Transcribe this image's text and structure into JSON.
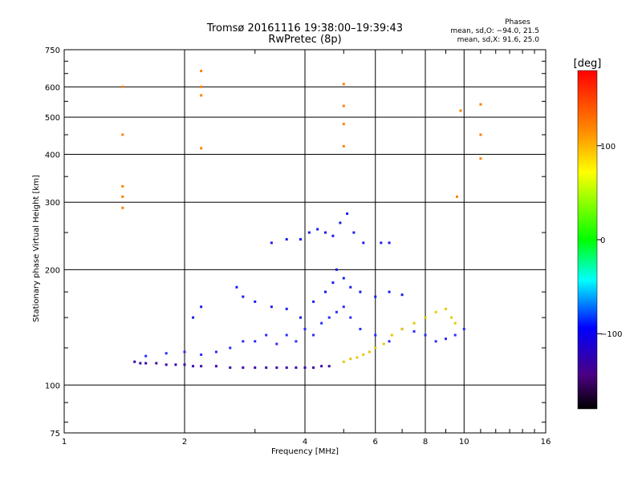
{
  "title": "Tromsø 20161116 19:38:00–19:39:43",
  "subtitle": "RwPretec (8p)",
  "phase_box": {
    "heading": "Phases",
    "line1": "mean, sd,O: −94.0, 21.5",
    "line2": "mean, sd,X:  91.6, 25.0"
  },
  "colorbar": {
    "label": "[deg]",
    "ticks": [
      "100",
      "0",
      "−100"
    ],
    "tick_values": [
      100,
      0,
      -100
    ],
    "range": [
      -180,
      180
    ]
  },
  "chart_data": {
    "type": "scatter",
    "title": "Tromsø 20161116 19:38:00–19:39:43",
    "subtitle": "RwPretec (8p)",
    "xlabel": "Frequency [MHz]",
    "ylabel": "Stationary phase Virtual Height [km]",
    "xscale": "log",
    "yscale": "log",
    "xlim": [
      1,
      16
    ],
    "ylim": [
      75,
      750
    ],
    "x_ticks": [
      1,
      2,
      4,
      6,
      8,
      10,
      16
    ],
    "x_tick_labels": [
      "1",
      "2",
      "4",
      "6",
      "8",
      "10",
      "16"
    ],
    "y_ticks": [
      75,
      100,
      200,
      300,
      400,
      500,
      600,
      750
    ],
    "y_tick_labels": [
      "75",
      "100",
      "200",
      "300",
      "400",
      "500",
      "600",
      "750"
    ],
    "grid": true,
    "color_by": "phase (deg)",
    "series": [
      {
        "name": "O-trace lower (purple, ~-130 deg)",
        "points": [
          [
            1.5,
            115
          ],
          [
            1.55,
            114
          ],
          [
            1.6,
            114
          ],
          [
            1.7,
            114
          ],
          [
            1.8,
            113
          ],
          [
            1.9,
            113
          ],
          [
            2.0,
            113
          ],
          [
            2.1,
            112
          ],
          [
            2.2,
            112
          ],
          [
            2.4,
            112
          ],
          [
            2.6,
            111
          ],
          [
            2.8,
            111
          ],
          [
            3.0,
            111
          ],
          [
            3.2,
            111
          ],
          [
            3.4,
            111
          ],
          [
            3.6,
            111
          ],
          [
            3.8,
            111
          ],
          [
            4.0,
            111
          ],
          [
            4.2,
            111
          ],
          [
            4.4,
            112
          ],
          [
            4.6,
            112
          ]
        ]
      },
      {
        "name": "O-trace middle band (blue, ~-110 deg)",
        "points": [
          [
            1.6,
            119
          ],
          [
            1.8,
            121
          ],
          [
            2.0,
            122
          ],
          [
            2.2,
            120
          ],
          [
            2.4,
            122
          ],
          [
            2.6,
            125
          ],
          [
            2.8,
            130
          ],
          [
            3.0,
            130
          ],
          [
            3.2,
            135
          ],
          [
            3.4,
            128
          ],
          [
            3.6,
            135
          ],
          [
            3.8,
            130
          ],
          [
            4.0,
            140
          ],
          [
            4.2,
            135
          ],
          [
            4.4,
            145
          ],
          [
            4.6,
            150
          ],
          [
            4.8,
            155
          ],
          [
            5.0,
            160
          ],
          [
            5.2,
            150
          ],
          [
            5.5,
            140
          ],
          [
            6.0,
            135
          ],
          [
            6.5,
            130
          ],
          [
            7.0,
            140
          ],
          [
            7.5,
            138
          ],
          [
            8.0,
            135
          ],
          [
            8.5,
            130
          ],
          [
            9.0,
            132
          ],
          [
            9.5,
            135
          ],
          [
            10.0,
            140
          ]
        ]
      },
      {
        "name": "Spread F (blue, ~-100 deg)",
        "points": [
          [
            2.1,
            150
          ],
          [
            2.2,
            160
          ],
          [
            2.7,
            180
          ],
          [
            2.8,
            170
          ],
          [
            3.0,
            165
          ],
          [
            3.3,
            160
          ],
          [
            3.6,
            158
          ],
          [
            3.9,
            150
          ],
          [
            4.2,
            165
          ],
          [
            4.5,
            175
          ],
          [
            4.7,
            185
          ],
          [
            4.8,
            200
          ],
          [
            5.0,
            190
          ],
          [
            5.2,
            180
          ],
          [
            5.5,
            175
          ],
          [
            6.0,
            170
          ],
          [
            6.5,
            175
          ],
          [
            7.0,
            172
          ]
        ]
      },
      {
        "name": "Upper F region echoes (blue, ~-100 deg)",
        "points": [
          [
            3.3,
            235
          ],
          [
            3.6,
            240
          ],
          [
            3.9,
            240
          ],
          [
            4.1,
            250
          ],
          [
            4.3,
            255
          ],
          [
            4.5,
            250
          ],
          [
            4.7,
            245
          ],
          [
            4.9,
            265
          ],
          [
            5.1,
            280
          ],
          [
            5.3,
            250
          ],
          [
            5.6,
            235
          ],
          [
            6.2,
            235
          ],
          [
            6.5,
            235
          ]
        ]
      },
      {
        "name": "X-trace (yellow/orange, ~+90 deg)",
        "points": [
          [
            5.0,
            115
          ],
          [
            5.2,
            117
          ],
          [
            5.4,
            118
          ],
          [
            5.6,
            120
          ],
          [
            5.8,
            122
          ],
          [
            6.0,
            125
          ],
          [
            6.3,
            128
          ],
          [
            6.6,
            135
          ],
          [
            7.0,
            140
          ],
          [
            7.5,
            145
          ],
          [
            8.0,
            150
          ],
          [
            8.5,
            155
          ],
          [
            9.0,
            158
          ],
          [
            9.3,
            150
          ],
          [
            9.5,
            145
          ]
        ]
      },
      {
        "name": "Scattered high-altitude echoes",
        "points": [
          [
            1.4,
            290
          ],
          [
            1.4,
            310
          ],
          [
            1.4,
            330
          ],
          [
            1.4,
            450
          ],
          [
            1.4,
            600
          ],
          [
            2.2,
            415
          ],
          [
            2.2,
            570
          ],
          [
            2.2,
            600
          ],
          [
            2.2,
            660
          ],
          [
            5.0,
            420
          ],
          [
            5.0,
            480
          ],
          [
            5.0,
            535
          ],
          [
            5.0,
            610
          ],
          [
            9.6,
            310
          ],
          [
            9.8,
            520
          ],
          [
            11.0,
            390
          ],
          [
            11.0,
            450
          ],
          [
            11.0,
            540
          ]
        ]
      }
    ]
  }
}
